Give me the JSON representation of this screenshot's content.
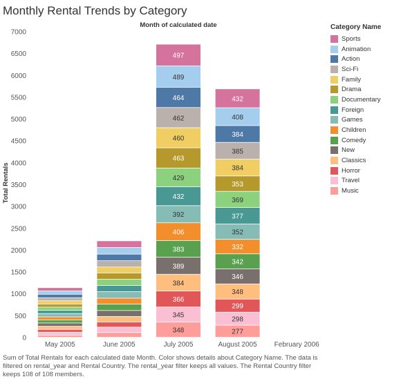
{
  "title": "Monthly Rental Trends by Category",
  "caption": "Sum of Total Rentals for each calculated date Month.  Color shows details about Category Name. The data is filtered on rental_year and Rental Country. The rental_year filter keeps all values. The Rental Country filter keeps 108 of 108 members.",
  "legend": {
    "title": "Category Name",
    "items": [
      {
        "label": "Sports",
        "color": "#d4739b"
      },
      {
        "label": "Animation",
        "color": "#a5cdee"
      },
      {
        "label": "Action",
        "color": "#4e79a7"
      },
      {
        "label": "Sci-Fi",
        "color": "#bab0ac"
      },
      {
        "label": "Family",
        "color": "#f1ce63"
      },
      {
        "label": "Drama",
        "color": "#b6992d"
      },
      {
        "label": "Documentary",
        "color": "#8cd17d"
      },
      {
        "label": "Foreign",
        "color": "#499894"
      },
      {
        "label": "Games",
        "color": "#86bcb6"
      },
      {
        "label": "Children",
        "color": "#f28e2b"
      },
      {
        "label": "Comedy",
        "color": "#59a14f"
      },
      {
        "label": "New",
        "color": "#79706e"
      },
      {
        "label": "Classics",
        "color": "#ffbe7d"
      },
      {
        "label": "Horror",
        "color": "#e15759"
      },
      {
        "label": "Travel",
        "color": "#fabfd2"
      },
      {
        "label": "Music",
        "color": "#ff9d9a"
      }
    ]
  },
  "chart_data": {
    "type": "bar",
    "stacked": true,
    "title": "Monthly Rental Trends by Category",
    "xlabel": "Month of calculated date",
    "ylabel": "Total Rentals",
    "ylim": [
      0,
      7000
    ],
    "yticks": [
      0,
      500,
      1000,
      1500,
      2000,
      2500,
      3000,
      3500,
      4000,
      4500,
      5000,
      5500,
      6000,
      6500,
      7000
    ],
    "categories": [
      "May 2005",
      "June 2005",
      "July 2005",
      "August 2005",
      "February 2006"
    ],
    "grid": false,
    "legend_position": "right",
    "series": [
      {
        "name": "Music",
        "values": [
          48,
          108,
          348,
          277,
          5
        ]
      },
      {
        "name": "Travel",
        "values": [
          68,
          125,
          345,
          298,
          12
        ]
      },
      {
        "name": "Horror",
        "values": [
          64,
          116,
          366,
          299,
          8
        ]
      },
      {
        "name": "Classics",
        "values": [
          72,
          128,
          384,
          348,
          9
        ]
      },
      {
        "name": "New",
        "values": [
          75,
          136,
          389,
          346,
          10
        ]
      },
      {
        "name": "Comedy",
        "values": [
          72,
          148,
          383,
          342,
          10
        ]
      },
      {
        "name": "Children",
        "values": [
          68,
          134,
          406,
          332,
          9
        ]
      },
      {
        "name": "Games",
        "values": [
          76,
          150,
          392,
          352,
          9
        ]
      },
      {
        "name": "Foreign",
        "values": [
          75,
          140,
          432,
          377,
          8
        ]
      },
      {
        "name": "Documentary",
        "values": [
          72,
          144,
          429,
          369,
          8
        ]
      },
      {
        "name": "Drama",
        "values": [
          72,
          144,
          463,
          353,
          8
        ]
      },
      {
        "name": "Family",
        "values": [
          74,
          135,
          460,
          384,
          9
        ]
      },
      {
        "name": "Sci-Fi",
        "values": [
          69,
          145,
          462,
          385,
          8
        ]
      },
      {
        "name": "Action",
        "values": [
          80,
          150,
          464,
          384,
          8
        ]
      },
      {
        "name": "Animation",
        "values": [
          77,
          152,
          489,
          408,
          9
        ]
      },
      {
        "name": "Sports",
        "values": [
          74,
          153,
          497,
          432,
          10
        ]
      }
    ],
    "data_labels": {
      "July 2005": true,
      "August 2005": true
    }
  }
}
